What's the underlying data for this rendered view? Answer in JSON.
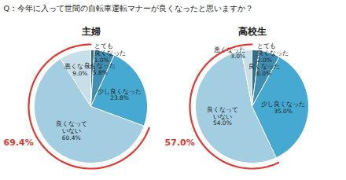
{
  "title": "Q：今年に入って世間の自転車運転マナーが良くなったと思いますか？",
  "chart_data": [
    {
      "type": "pie",
      "title": "主婦",
      "categories": [
        "とても\n良くなった",
        "良くなった",
        "少し良くなった",
        "良くなって\nいない",
        "悪くなった"
      ],
      "values": [
        1.0,
        5.8,
        23.8,
        60.4,
        9.0
      ],
      "value_labels": [
        "1.0%",
        "5.8%",
        "23.8%",
        "60.4%",
        "9.0%"
      ],
      "colors": [
        "#2f6f8b",
        "#3f8db0",
        "#45a9d1",
        "#a3cde0",
        "#c7dfe9"
      ],
      "data_labels": true,
      "highlight": {
        "value": 69.4,
        "label": "69.4%",
        "color": "#e2372f"
      }
    },
    {
      "type": "pie",
      "title": "高校生",
      "categories": [
        "とても\n良くなった",
        "良くなった",
        "少し良くなった",
        "良くなって\nいない",
        "悪くなった"
      ],
      "values": [
        2.0,
        6.0,
        35.0,
        54.0,
        3.0
      ],
      "value_labels": [
        "2.0%",
        "6.0%",
        "35.0%",
        "54.0%",
        "3.0%"
      ],
      "colors": [
        "#2f6f8b",
        "#3f8db0",
        "#45a9d1",
        "#a3cde0",
        "#c7dfe9"
      ],
      "data_labels": true,
      "highlight": {
        "value": 57.0,
        "label": "57.0%",
        "color": "#e2372f"
      }
    }
  ]
}
